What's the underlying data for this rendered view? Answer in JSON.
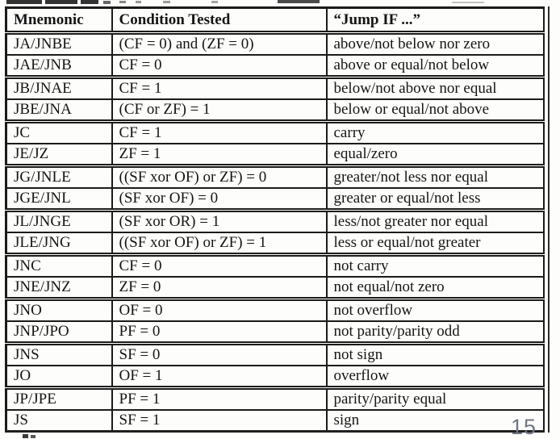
{
  "page": {
    "page_number": "15"
  },
  "table": {
    "headers": [
      "Mnemonic",
      "Condition Tested",
      "“Jump IF ...”"
    ],
    "rows": [
      {
        "mnemonic": "JA/JNBE",
        "condition": "(CF = 0) and (ZF = 0)",
        "jump_if": "above/not below nor zero"
      },
      {
        "mnemonic": "JAE/JNB",
        "condition": "CF = 0",
        "jump_if": "above or equal/not below"
      },
      {
        "mnemonic": "JB/JNAE",
        "condition": "CF = 1",
        "jump_if": "below/not above nor equal"
      },
      {
        "mnemonic": "JBE/JNA",
        "condition": "(CF or ZF) = 1",
        "jump_if": "below or equal/not above"
      },
      {
        "mnemonic": "JC",
        "condition": "CF = 1",
        "jump_if": "carry"
      },
      {
        "mnemonic": "JE/JZ",
        "condition": "ZF = 1",
        "jump_if": "equal/zero"
      },
      {
        "mnemonic": "JG/JNLE",
        "condition": "((SF xor OF) or ZF) = 0",
        "jump_if": "greater/not less nor equal"
      },
      {
        "mnemonic": "JGE/JNL",
        "condition": "(SF xor OF) = 0",
        "jump_if": "greater or equal/not less"
      },
      {
        "mnemonic": "JL/JNGE",
        "condition": "(SF xor OR) = 1",
        "jump_if": "less/not greater nor equal"
      },
      {
        "mnemonic": "JLE/JNG",
        "condition": "((SF xor OF) or ZF) = 1",
        "jump_if": "less or equal/not greater"
      },
      {
        "mnemonic": "JNC",
        "condition": "CF = 0",
        "jump_if": "not carry"
      },
      {
        "mnemonic": "JNE/JNZ",
        "condition": "ZF = 0",
        "jump_if": "not equal/not zero"
      },
      {
        "mnemonic": "JNO",
        "condition": "OF = 0",
        "jump_if": "not overflow"
      },
      {
        "mnemonic": "JNP/JPO",
        "condition": "PF = 0",
        "jump_if": "not parity/parity odd"
      },
      {
        "mnemonic": "JNS",
        "condition": "SF = 0",
        "jump_if": "not sign"
      },
      {
        "mnemonic": "JO",
        "condition": "OF = 1",
        "jump_if": "overflow"
      },
      {
        "mnemonic": "JP/JPE",
        "condition": "PF = 1",
        "jump_if": "parity/parity equal"
      },
      {
        "mnemonic": "JS",
        "condition": "SF = 1",
        "jump_if": "sign"
      }
    ]
  }
}
